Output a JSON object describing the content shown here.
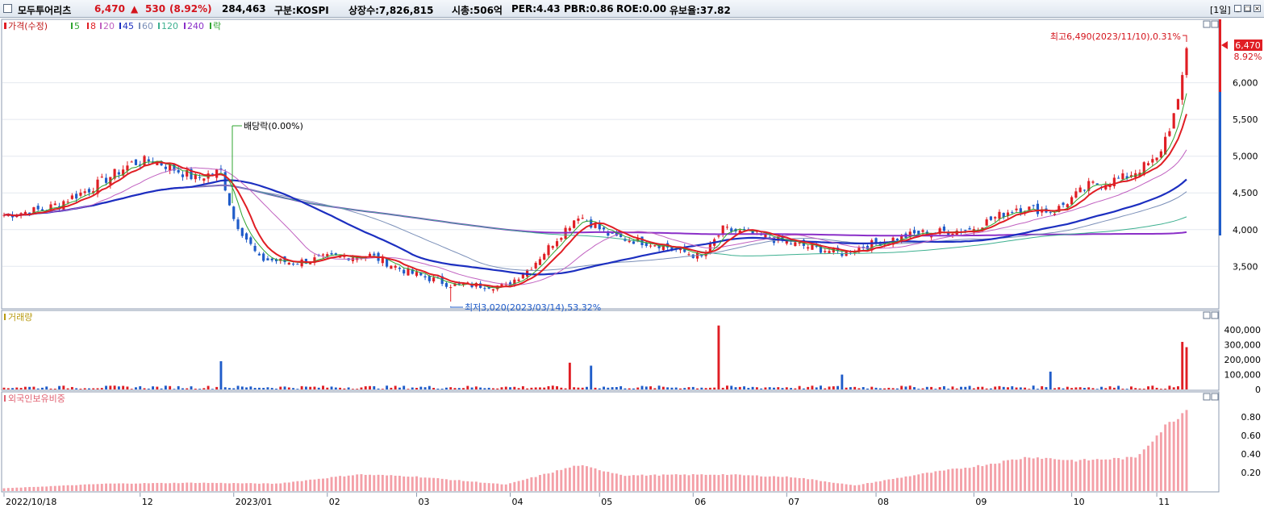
{
  "header": {
    "stock_name": "모두투어리츠",
    "price": "6,470",
    "change_arrow": "▲",
    "change": "530",
    "change_pct": "(8.92%)",
    "volume": "284,463",
    "market": "구분:KOSPI",
    "shares": "상장수:7,826,815",
    "market_cap": "시총:506억",
    "per": "PER:4.43",
    "pbr": "PBR:0.86",
    "roe": "ROE:0.00",
    "float_ratio": "유보율:37.82",
    "period": "[1일]"
  },
  "colors": {
    "up": "#e01e24",
    "down": "#1f5cc9",
    "ma5": "#2fa42f",
    "ma8": "#e01e24",
    "ma20": "#c060c0",
    "ma45": "#1c2fc0",
    "ma60": "#7a8fb8",
    "ma120": "#3db090",
    "ma240": "#8a2fc8",
    "foreign": "#f4a0a8"
  },
  "chart_data": [
    {
      "type": "candlestick",
      "panel": "price",
      "legend": [
        "가격(수정)",
        "5",
        "8",
        "20",
        "45",
        "60",
        "120",
        "240",
        "락"
      ],
      "legend_placement": "top-left",
      "x_tick_labels": [
        "2022/10/18",
        "12",
        "2023/01",
        "02",
        "03",
        "04",
        "05",
        "06",
        "07",
        "08",
        "09",
        "10",
        "11"
      ],
      "y_ticks": [
        3500,
        4000,
        4500,
        5000,
        5500,
        6000
      ],
      "y_tick_labels": [
        "3,500",
        "4,000",
        "4,500",
        "5,000",
        "5,500",
        "6,000"
      ],
      "ylim": [
        3020,
        6490
      ],
      "last_price_label": "6,470",
      "last_pct_label": "8.92%",
      "close_series": [
        {
          "date": "2022-10-18",
          "close": 4200
        },
        {
          "date": "2022-11-01",
          "close": 4280
        },
        {
          "date": "2022-11-15",
          "close": 4550
        },
        {
          "date": "2022-11-29",
          "close": 4900
        },
        {
          "date": "2022-12-06",
          "close": 4950
        },
        {
          "date": "2022-12-20",
          "close": 4700
        },
        {
          "date": "2022-12-28",
          "close": 4800
        },
        {
          "date": "2023-01-02",
          "close": 4150
        },
        {
          "date": "2023-01-10",
          "close": 3600
        },
        {
          "date": "2023-01-20",
          "close": 3550
        },
        {
          "date": "2023-02-01",
          "close": 3620
        },
        {
          "date": "2023-02-15",
          "close": 3650
        },
        {
          "date": "2023-02-28",
          "close": 3420
        },
        {
          "date": "2023-03-14",
          "close": 3250
        },
        {
          "date": "2023-03-31",
          "close": 3230
        },
        {
          "date": "2023-04-10",
          "close": 3500
        },
        {
          "date": "2023-04-25",
          "close": 4200
        },
        {
          "date": "2023-05-05",
          "close": 3900
        },
        {
          "date": "2023-05-20",
          "close": 3800
        },
        {
          "date": "2023-06-05",
          "close": 3620
        },
        {
          "date": "2023-06-12",
          "close": 4000
        },
        {
          "date": "2023-06-20",
          "close": 3950
        },
        {
          "date": "2023-07-05",
          "close": 3800
        },
        {
          "date": "2023-07-20",
          "close": 3680
        },
        {
          "date": "2023-08-01",
          "close": 3820
        },
        {
          "date": "2023-08-15",
          "close": 3950
        },
        {
          "date": "2023-08-31",
          "close": 4000
        },
        {
          "date": "2023-09-15",
          "close": 4300
        },
        {
          "date": "2023-09-28",
          "close": 4250
        },
        {
          "date": "2023-10-10",
          "close": 4600
        },
        {
          "date": "2023-10-20",
          "close": 4700
        },
        {
          "date": "2023-11-01",
          "close": 4950
        },
        {
          "date": "2023-11-08",
          "close": 5700
        },
        {
          "date": "2023-11-10",
          "close": 6470
        }
      ],
      "annotations": [
        {
          "text": "배당락(0.00%)",
          "date": "2022-12-28"
        },
        {
          "text": "최고6,490(2023/11/10),0.31%",
          "date": "2023-11-10",
          "value": 6490
        },
        {
          "text": "최저3,020(2023/03/14),53.32%",
          "date": "2023-03-14",
          "value": 3020
        }
      ]
    },
    {
      "type": "bar",
      "panel": "volume",
      "title": "거래량",
      "y_ticks": [
        0,
        100000,
        200000,
        300000,
        400000
      ],
      "y_tick_labels": [
        "0",
        "100,000",
        "200,000",
        "300,000",
        "400,000"
      ],
      "ylim": [
        0,
        450000
      ],
      "notable_values": [
        {
          "date": "2022-12-28",
          "value": 190000
        },
        {
          "date": "2023-04-21",
          "value": 180000
        },
        {
          "date": "2023-04-28",
          "value": 160000
        },
        {
          "date": "2023-06-09",
          "value": 430000
        },
        {
          "date": "2023-07-20",
          "value": 100000
        },
        {
          "date": "2023-09-27",
          "value": 120000
        },
        {
          "date": "2023-11-09",
          "value": 320000
        },
        {
          "date": "2023-11-10",
          "value": 284463
        }
      ]
    },
    {
      "type": "bar",
      "panel": "foreign",
      "title": "외국인보유비중",
      "y_ticks": [
        0.2,
        0.4,
        0.6,
        0.8
      ],
      "y_tick_labels": [
        "0.20",
        "0.40",
        "0.60",
        "0.80"
      ],
      "ylim": [
        0,
        0.95
      ],
      "series": [
        {
          "date": "2022-10-18",
          "value": 0.03
        },
        {
          "date": "2022-11-20",
          "value": 0.08
        },
        {
          "date": "2022-12-20",
          "value": 0.09
        },
        {
          "date": "2023-01-15",
          "value": 0.08
        },
        {
          "date": "2023-02-10",
          "value": 0.18
        },
        {
          "date": "2023-03-01",
          "value": 0.16
        },
        {
          "date": "2023-03-31",
          "value": 0.07
        },
        {
          "date": "2023-04-25",
          "value": 0.28
        },
        {
          "date": "2023-05-10",
          "value": 0.17
        },
        {
          "date": "2023-06-12",
          "value": 0.18
        },
        {
          "date": "2023-07-05",
          "value": 0.15
        },
        {
          "date": "2023-07-25",
          "value": 0.06
        },
        {
          "date": "2023-08-15",
          "value": 0.18
        },
        {
          "date": "2023-09-05",
          "value": 0.28
        },
        {
          "date": "2023-09-20",
          "value": 0.37
        },
        {
          "date": "2023-10-05",
          "value": 0.33
        },
        {
          "date": "2023-10-25",
          "value": 0.36
        },
        {
          "date": "2023-11-03",
          "value": 0.7
        },
        {
          "date": "2023-11-10",
          "value": 0.88
        }
      ]
    }
  ]
}
